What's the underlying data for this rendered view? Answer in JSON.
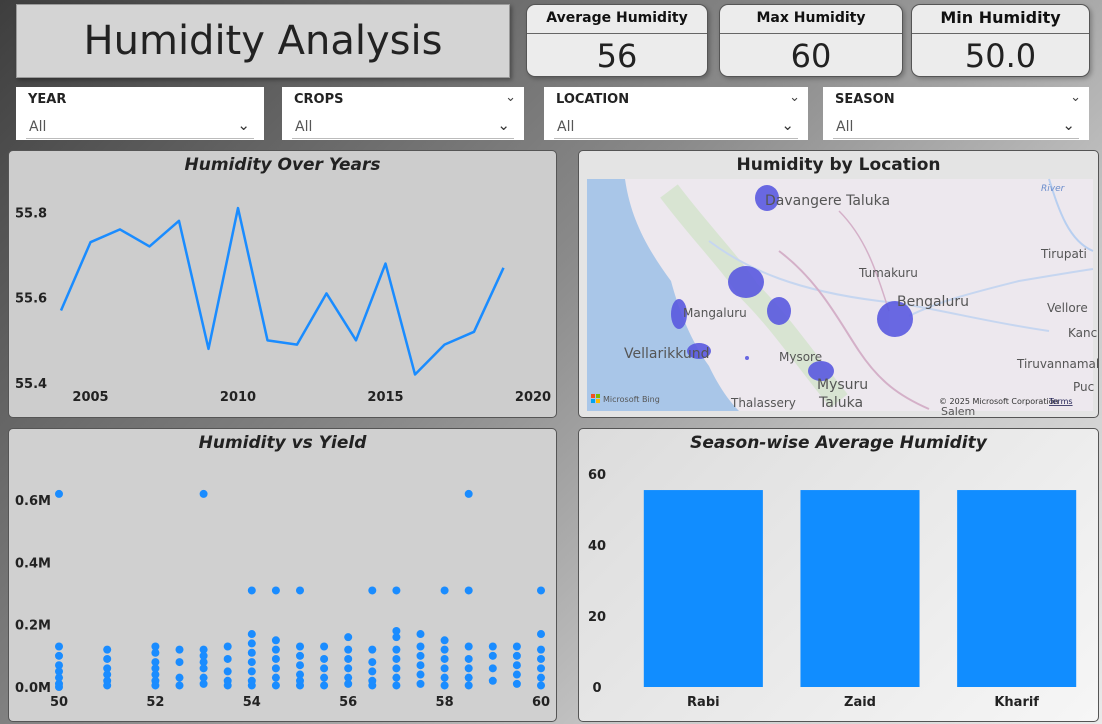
{
  "header": {
    "title": "Humidity Analysis"
  },
  "kpis": [
    {
      "label": "Average Humidity",
      "value": "56"
    },
    {
      "label": "Max Humidity",
      "value": "60"
    },
    {
      "label": "Min Humidity",
      "value": "50.0"
    }
  ],
  "slicers": [
    {
      "label": "YEAR",
      "value": "All"
    },
    {
      "label": "CROPS",
      "value": "All"
    },
    {
      "label": "LOCATION",
      "value": "All"
    },
    {
      "label": "SEASON",
      "value": "All"
    }
  ],
  "map": {
    "title": "Humidity by Location",
    "places": [
      "Davangere Taluka",
      "Tumakuru",
      "Tirupati",
      "Mangaluru",
      "Bengaluru",
      "Vellore",
      "Vellarikkund",
      "Mysore",
      "Mysuru",
      "Taluka",
      "Tiruvannamal",
      "Thalassery",
      "Kanc",
      "Puc",
      "Salem",
      "River"
    ],
    "attribution": "Microsoft Bing",
    "copyright": "© 2025 Microsoft Corporation",
    "terms": "Terms",
    "point_color": "#5a5ae0"
  },
  "chart_data": [
    {
      "type": "line",
      "title": "Humidity Over Years",
      "x": [
        2004,
        2005,
        2006,
        2007,
        2008,
        2009,
        2010,
        2011,
        2012,
        2013,
        2014,
        2015,
        2016,
        2017,
        2018,
        2019
      ],
      "y": [
        55.57,
        55.73,
        55.76,
        55.72,
        55.78,
        55.48,
        55.81,
        55.5,
        55.49,
        55.61,
        55.5,
        55.68,
        55.42,
        55.49,
        55.52,
        55.67
      ],
      "xticks": [
        2005,
        2010,
        2015,
        2020
      ],
      "yticks": [
        55.4,
        55.6,
        55.8
      ],
      "xlim": [
        2004,
        2020
      ],
      "ylim": [
        55.4,
        55.85
      ],
      "color": "#1a8cff"
    },
    {
      "type": "scatter",
      "title": "Humidity vs Yield",
      "xticks": [
        50,
        52,
        54,
        56,
        58,
        60
      ],
      "ytick_labels": [
        "0.0M",
        "0.2M",
        "0.4M",
        "0.6M"
      ],
      "yticks": [
        0,
        200000,
        400000,
        600000
      ],
      "xlim": [
        50,
        60
      ],
      "ylim": [
        0,
        700000
      ],
      "color": "#1a8cff",
      "points": [
        [
          50,
          620000
        ],
        [
          50,
          130000
        ],
        [
          50,
          100000
        ],
        [
          50,
          70000
        ],
        [
          50,
          50000
        ],
        [
          50,
          30000
        ],
        [
          50,
          10000
        ],
        [
          50,
          0
        ],
        [
          51,
          120000
        ],
        [
          51,
          90000
        ],
        [
          51,
          60000
        ],
        [
          51,
          40000
        ],
        [
          51,
          20000
        ],
        [
          51,
          5000
        ],
        [
          52,
          130000
        ],
        [
          52,
          110000
        ],
        [
          52,
          80000
        ],
        [
          52,
          60000
        ],
        [
          52,
          40000
        ],
        [
          52,
          20000
        ],
        [
          52,
          5000
        ],
        [
          52.5,
          120000
        ],
        [
          52.5,
          80000
        ],
        [
          52.5,
          30000
        ],
        [
          52.5,
          5000
        ],
        [
          53,
          620000
        ],
        [
          53,
          120000
        ],
        [
          53,
          100000
        ],
        [
          53,
          80000
        ],
        [
          53,
          60000
        ],
        [
          53,
          30000
        ],
        [
          53,
          10000
        ],
        [
          53.5,
          130000
        ],
        [
          53.5,
          90000
        ],
        [
          53.5,
          50000
        ],
        [
          53.5,
          20000
        ],
        [
          53.5,
          5000
        ],
        [
          54,
          310000
        ],
        [
          54,
          170000
        ],
        [
          54,
          140000
        ],
        [
          54,
          110000
        ],
        [
          54,
          80000
        ],
        [
          54,
          50000
        ],
        [
          54,
          20000
        ],
        [
          54,
          5000
        ],
        [
          54.5,
          310000
        ],
        [
          54.5,
          150000
        ],
        [
          54.5,
          120000
        ],
        [
          54.5,
          90000
        ],
        [
          54.5,
          60000
        ],
        [
          54.5,
          30000
        ],
        [
          54.5,
          5000
        ],
        [
          55,
          310000
        ],
        [
          55,
          130000
        ],
        [
          55,
          100000
        ],
        [
          55,
          70000
        ],
        [
          55,
          40000
        ],
        [
          55,
          20000
        ],
        [
          55,
          5000
        ],
        [
          55.5,
          130000
        ],
        [
          55.5,
          90000
        ],
        [
          55.5,
          60000
        ],
        [
          55.5,
          30000
        ],
        [
          55.5,
          5000
        ],
        [
          56,
          160000
        ],
        [
          56,
          120000
        ],
        [
          56,
          90000
        ],
        [
          56,
          60000
        ],
        [
          56,
          30000
        ],
        [
          56,
          10000
        ],
        [
          56.5,
          310000
        ],
        [
          56.5,
          120000
        ],
        [
          56.5,
          80000
        ],
        [
          56.5,
          50000
        ],
        [
          56.5,
          20000
        ],
        [
          56.5,
          5000
        ],
        [
          57,
          310000
        ],
        [
          57,
          180000
        ],
        [
          57,
          160000
        ],
        [
          57,
          120000
        ],
        [
          57,
          90000
        ],
        [
          57,
          60000
        ],
        [
          57,
          30000
        ],
        [
          57,
          5000
        ],
        [
          57.5,
          170000
        ],
        [
          57.5,
          130000
        ],
        [
          57.5,
          100000
        ],
        [
          57.5,
          70000
        ],
        [
          57.5,
          40000
        ],
        [
          57.5,
          10000
        ],
        [
          58,
          310000
        ],
        [
          58,
          150000
        ],
        [
          58,
          120000
        ],
        [
          58,
          90000
        ],
        [
          58,
          60000
        ],
        [
          58,
          30000
        ],
        [
          58,
          5000
        ],
        [
          58.5,
          620000
        ],
        [
          58.5,
          310000
        ],
        [
          58.5,
          130000
        ],
        [
          58.5,
          90000
        ],
        [
          58.5,
          60000
        ],
        [
          58.5,
          30000
        ],
        [
          58.5,
          5000
        ],
        [
          59,
          130000
        ],
        [
          59,
          100000
        ],
        [
          59,
          60000
        ],
        [
          59,
          20000
        ],
        [
          59.5,
          130000
        ],
        [
          59.5,
          100000
        ],
        [
          59.5,
          70000
        ],
        [
          59.5,
          40000
        ],
        [
          59.5,
          10000
        ],
        [
          60,
          310000
        ],
        [
          60,
          170000
        ],
        [
          60,
          120000
        ],
        [
          60,
          90000
        ],
        [
          60,
          60000
        ],
        [
          60,
          30000
        ],
        [
          60,
          5000
        ]
      ]
    },
    {
      "type": "bar",
      "title": "Season-wise Average Humidity",
      "categories": [
        "Rabi",
        "Zaid",
        "Kharif"
      ],
      "values": [
        55.5,
        55.5,
        55.5
      ],
      "yticks": [
        0,
        20,
        40,
        60
      ],
      "ylim": [
        0,
        62
      ],
      "color": "#118dff"
    }
  ]
}
